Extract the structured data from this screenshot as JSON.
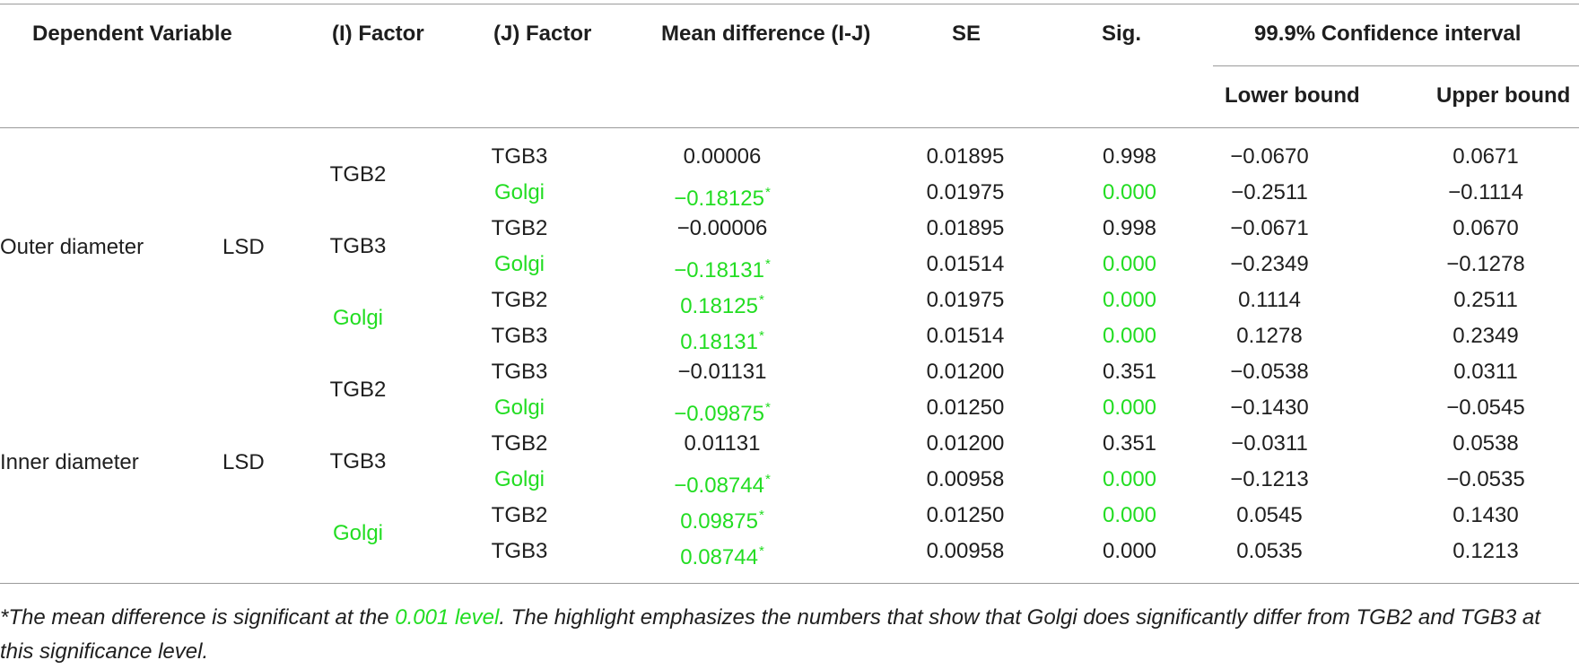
{
  "headers": {
    "dependent_variable": "Dependent Variable",
    "i_factor": "(I) Factor",
    "j_factor": "(J) Factor",
    "mean_difference": "Mean difference (I-J)",
    "se": "SE",
    "sig": "Sig.",
    "confidence_interval": "99.9% Confidence interval",
    "lower_bound": "Lower bound",
    "upper_bound": "Upper bound"
  },
  "groups": [
    {
      "dependent_variable": "Outer diameter",
      "method": "LSD"
    },
    {
      "dependent_variable": "Inner diameter",
      "method": "LSD"
    }
  ],
  "i_factor_cells": [
    {
      "label": "TGB2",
      "highlight": false
    },
    {
      "label": "TGB3",
      "highlight": false
    },
    {
      "label": "Golgi",
      "highlight": true
    },
    {
      "label": "TGB2",
      "highlight": false
    },
    {
      "label": "TGB3",
      "highlight": false
    },
    {
      "label": "Golgi",
      "highlight": true
    }
  ],
  "rows": [
    {
      "j": "TGB3",
      "j_hl": false,
      "mean": "0.00006",
      "mean_hl": false,
      "star": "",
      "se": "0.01895",
      "sig": "0.998",
      "sig_hl": false,
      "lower": "−0.0670",
      "upper": "0.0671"
    },
    {
      "j": "Golgi",
      "j_hl": true,
      "mean": "−0.18125",
      "mean_hl": true,
      "star": "*",
      "se": "0.01975",
      "sig": "0.000",
      "sig_hl": true,
      "lower": "−0.2511",
      "upper": "−0.1114"
    },
    {
      "j": "TGB2",
      "j_hl": false,
      "mean": "−0.00006",
      "mean_hl": false,
      "star": "",
      "se": "0.01895",
      "sig": "0.998",
      "sig_hl": false,
      "lower": "−0.0671",
      "upper": "0.0670"
    },
    {
      "j": "Golgi",
      "j_hl": true,
      "mean": "−0.18131",
      "mean_hl": true,
      "star": "*",
      "se": "0.01514",
      "sig": "0.000",
      "sig_hl": true,
      "lower": "−0.2349",
      "upper": "−0.1278"
    },
    {
      "j": "TGB2",
      "j_hl": false,
      "mean": "0.18125",
      "mean_hl": true,
      "star": "*",
      "se": "0.01975",
      "sig": "0.000",
      "sig_hl": true,
      "lower": "0.1114",
      "upper": "0.2511"
    },
    {
      "j": "TGB3",
      "j_hl": false,
      "mean": "0.18131",
      "mean_hl": true,
      "star": "*",
      "se": "0.01514",
      "sig": "0.000",
      "sig_hl": true,
      "lower": "0.1278",
      "upper": "0.2349"
    },
    {
      "j": "TGB3",
      "j_hl": false,
      "mean": "−0.01131",
      "mean_hl": false,
      "star": "",
      "se": "0.01200",
      "sig": "0.351",
      "sig_hl": false,
      "lower": "−0.0538",
      "upper": "0.0311"
    },
    {
      "j": "Golgi",
      "j_hl": true,
      "mean": "−0.09875",
      "mean_hl": true,
      "star": "*",
      "se": "0.01250",
      "sig": "0.000",
      "sig_hl": true,
      "lower": "−0.1430",
      "upper": "−0.0545"
    },
    {
      "j": "TGB2",
      "j_hl": false,
      "mean": "0.01131",
      "mean_hl": false,
      "star": "",
      "se": "0.01200",
      "sig": "0.351",
      "sig_hl": false,
      "lower": "−0.0311",
      "upper": "0.0538"
    },
    {
      "j": "Golgi",
      "j_hl": true,
      "mean": "−0.08744",
      "mean_hl": true,
      "star": "*",
      "se": "0.00958",
      "sig": "0.000",
      "sig_hl": true,
      "lower": "−0.1213",
      "upper": "−0.0535"
    },
    {
      "j": "TGB2",
      "j_hl": false,
      "mean": "0.09875",
      "mean_hl": true,
      "star": "*",
      "se": "0.01250",
      "sig": "0.000",
      "sig_hl": true,
      "lower": "0.0545",
      "upper": "0.1430"
    },
    {
      "j": "TGB3",
      "j_hl": false,
      "mean": "0.08744",
      "mean_hl": true,
      "star": "*",
      "se": "0.00958",
      "sig": "0.000",
      "sig_hl": false,
      "lower": "0.0535",
      "upper": "0.1213"
    }
  ],
  "footnote": {
    "part1": "*The mean difference is significant at the ",
    "highlight": "0.001 level",
    "part2": ". The highlight emphasizes the numbers that show that Golgi does significantly differ from TGB2 and TGB3 at this significance level."
  },
  "colors": {
    "highlight": "#22dd22",
    "text": "#1e1e1e",
    "rule": "#9a9a9a"
  }
}
